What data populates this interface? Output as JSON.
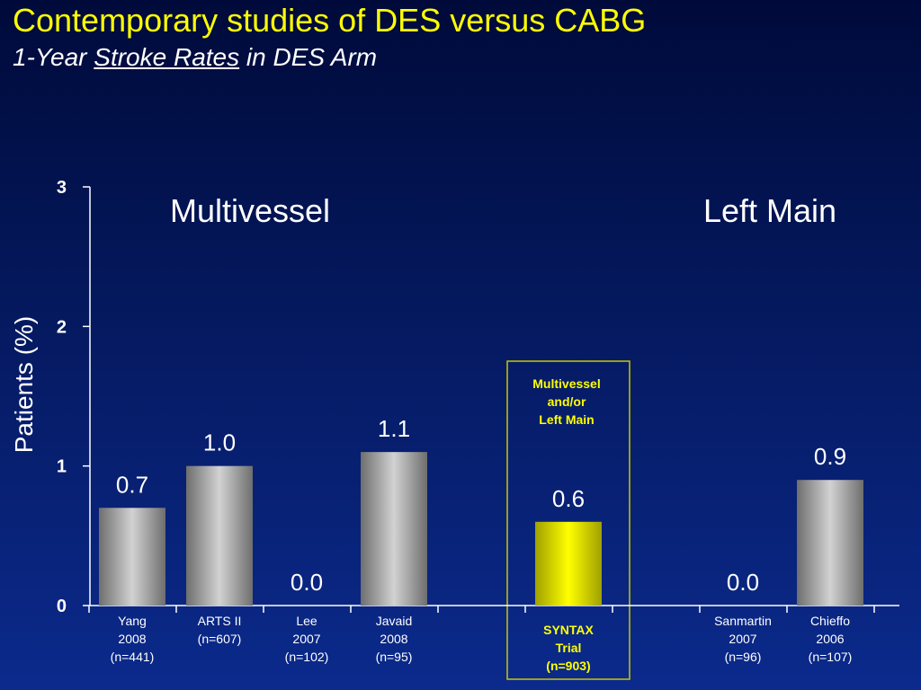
{
  "header": {
    "title": "Contemporary studies of DES versus CABG",
    "subtitle_pre": "1-Year ",
    "subtitle_underlined": "Stroke Rates",
    "subtitle_post": " in DES Arm"
  },
  "colors": {
    "title": "#ffff00",
    "bar_gray": "#b4b4b4",
    "bar_highlight": "#ffff00",
    "highlight_box": "#c8c800",
    "axis": "#ffffff"
  },
  "chart_data": {
    "type": "bar",
    "ylabel": "Patients (%)",
    "ylim": [
      0,
      3
    ],
    "yticks": [
      "0",
      "1",
      "2",
      "3"
    ],
    "grid": false,
    "groups": [
      "Multivessel",
      "Left Main"
    ],
    "highlight_box_label": [
      "Multivessel",
      "and/or",
      "Left Main"
    ],
    "bars": [
      {
        "slot": 0,
        "label_lines": [
          "Yang",
          "2008",
          "(n=441)"
        ],
        "value": 0.7,
        "value_label": "0.7",
        "highlight": false
      },
      {
        "slot": 1,
        "label_lines": [
          "ARTS II",
          "(n=607)"
        ],
        "value": 1.0,
        "value_label": "1.0",
        "highlight": false
      },
      {
        "slot": 2,
        "label_lines": [
          "Lee",
          "2007",
          "(n=102)"
        ],
        "value": 0.0,
        "value_label": "0.0",
        "highlight": false
      },
      {
        "slot": 3,
        "label_lines": [
          "Javaid",
          "2008",
          "(n=95)"
        ],
        "value": 1.1,
        "value_label": "1.1",
        "highlight": false
      },
      {
        "slot": 5,
        "label_lines": [
          "SYNTAX",
          "Trial",
          "(n=903)"
        ],
        "value": 0.6,
        "value_label": "0.6",
        "highlight": true
      },
      {
        "slot": 7,
        "label_lines": [
          "Sanmartin",
          "2007",
          "(n=96)"
        ],
        "value": 0.0,
        "value_label": "0.0",
        "highlight": false
      },
      {
        "slot": 8,
        "label_lines": [
          "Chieffo",
          "2006",
          "(n=107)"
        ],
        "value": 0.9,
        "value_label": "0.9",
        "highlight": false
      }
    ]
  }
}
